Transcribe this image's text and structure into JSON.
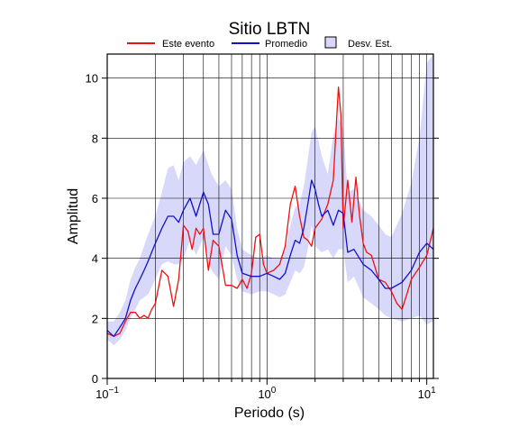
{
  "chart_data": {
    "type": "line",
    "title": "Sitio LBTN",
    "xlabel": "Periodo (s)",
    "ylabel": "Amplitud",
    "x_scale": "log",
    "xlim": [
      0.1,
      11
    ],
    "ylim": [
      0,
      10.8
    ],
    "x_tick_labels": [
      {
        "value": 0.1,
        "base": "10",
        "exp": "−1"
      },
      {
        "value": 1,
        "base": "10",
        "exp": "0"
      },
      {
        "value": 10,
        "base": "10",
        "exp": "1"
      }
    ],
    "y_ticks": [
      0,
      2,
      4,
      6,
      8,
      10
    ],
    "grid": true,
    "legend_position": "top",
    "legend": [
      {
        "label": "Este evento",
        "color": "#ee1111",
        "kind": "line"
      },
      {
        "label": "Promedio",
        "color": "#1111cc",
        "kind": "line"
      },
      {
        "label": "Desv. Est.",
        "color": "#d8d8fa",
        "kind": "band"
      }
    ],
    "series": [
      {
        "name": "Este evento",
        "color": "#ee1111",
        "x": [
          0.1,
          0.11,
          0.12,
          0.13,
          0.14,
          0.15,
          0.16,
          0.17,
          0.18,
          0.19,
          0.2,
          0.22,
          0.24,
          0.26,
          0.28,
          0.3,
          0.32,
          0.34,
          0.36,
          0.38,
          0.4,
          0.43,
          0.46,
          0.5,
          0.55,
          0.6,
          0.65,
          0.7,
          0.75,
          0.8,
          0.85,
          0.9,
          0.95,
          1.0,
          1.1,
          1.2,
          1.3,
          1.4,
          1.5,
          1.6,
          1.7,
          1.8,
          1.9,
          2.0,
          2.2,
          2.4,
          2.6,
          2.7,
          2.8,
          2.9,
          3.0,
          3.2,
          3.4,
          3.6,
          3.8,
          4.0,
          4.2,
          4.5,
          5.0,
          5.5,
          6.0,
          6.5,
          7.0,
          7.5,
          8.0,
          9.0,
          10.0,
          11.0
        ],
        "values": [
          1.5,
          1.4,
          1.5,
          1.9,
          2.2,
          2.2,
          2.0,
          2.1,
          2.0,
          2.3,
          2.5,
          3.6,
          3.4,
          2.4,
          3.3,
          5.1,
          4.9,
          4.3,
          5.0,
          4.8,
          5.0,
          3.6,
          4.6,
          4.4,
          3.1,
          3.1,
          3.0,
          3.3,
          3.0,
          3.5,
          4.7,
          4.8,
          3.8,
          3.5,
          3.6,
          3.8,
          4.4,
          5.8,
          6.4,
          5.4,
          4.7,
          4.6,
          4.4,
          5.0,
          5.3,
          5.8,
          6.6,
          8.2,
          9.7,
          8.8,
          5.0,
          6.6,
          5.2,
          6.7,
          5.4,
          4.5,
          4.2,
          4.1,
          3.3,
          3.2,
          2.9,
          2.5,
          2.3,
          2.8,
          3.3,
          3.7,
          4.1,
          5.0
        ]
      },
      {
        "name": "Promedio",
        "color": "#1111cc",
        "x": [
          0.1,
          0.11,
          0.12,
          0.13,
          0.14,
          0.15,
          0.16,
          0.17,
          0.18,
          0.2,
          0.22,
          0.24,
          0.26,
          0.28,
          0.3,
          0.33,
          0.36,
          0.4,
          0.43,
          0.46,
          0.5,
          0.55,
          0.6,
          0.65,
          0.7,
          0.8,
          0.9,
          1.0,
          1.1,
          1.2,
          1.3,
          1.4,
          1.5,
          1.6,
          1.7,
          1.8,
          1.9,
          2.0,
          2.1,
          2.2,
          2.4,
          2.6,
          2.8,
          3.0,
          3.2,
          3.5,
          4.0,
          4.5,
          5.0,
          5.5,
          6.0,
          7.0,
          8.0,
          9.0,
          10.0,
          11.0
        ],
        "values": [
          1.6,
          1.4,
          1.7,
          2.0,
          2.6,
          3.0,
          3.3,
          3.6,
          3.9,
          4.5,
          5.0,
          5.4,
          5.4,
          5.2,
          5.6,
          6.0,
          5.4,
          6.2,
          5.8,
          4.8,
          4.8,
          5.6,
          5.3,
          4.1,
          3.5,
          3.4,
          3.4,
          3.5,
          3.4,
          3.3,
          3.5,
          4.1,
          4.6,
          4.5,
          5.0,
          5.8,
          6.6,
          6.3,
          5.8,
          5.4,
          5.6,
          5.1,
          5.6,
          5.5,
          4.2,
          4.3,
          3.8,
          3.6,
          3.3,
          3.0,
          3.0,
          3.2,
          3.6,
          4.2,
          4.5,
          4.3
        ]
      }
    ],
    "band": {
      "name": "Desv. Est.",
      "color": "#d8d8fa",
      "x": [
        0.1,
        0.11,
        0.12,
        0.13,
        0.14,
        0.15,
        0.16,
        0.18,
        0.2,
        0.22,
        0.24,
        0.26,
        0.28,
        0.3,
        0.33,
        0.36,
        0.4,
        0.45,
        0.5,
        0.55,
        0.6,
        0.65,
        0.7,
        0.8,
        0.9,
        1.0,
        1.1,
        1.2,
        1.3,
        1.4,
        1.5,
        1.6,
        1.7,
        1.8,
        1.9,
        2.0,
        2.2,
        2.4,
        2.6,
        2.8,
        3.0,
        3.2,
        3.5,
        4.0,
        4.5,
        5.0,
        5.5,
        6.0,
        7.0,
        8.0,
        9.0,
        10.0,
        11.0
      ],
      "upper": [
        1.9,
        1.9,
        2.2,
        2.6,
        3.3,
        3.7,
        4.0,
        4.8,
        5.4,
        6.2,
        7.0,
        7.1,
        6.6,
        7.2,
        7.4,
        7.1,
        7.6,
        6.8,
        6.4,
        6.6,
        6.3,
        5.0,
        4.3,
        4.1,
        4.0,
        4.1,
        4.0,
        4.0,
        4.3,
        5.1,
        5.7,
        5.8,
        6.4,
        7.3,
        8.2,
        8.4,
        7.4,
        6.8,
        8.1,
        8.7,
        8.3,
        6.2,
        6.3,
        5.6,
        5.4,
        5.1,
        4.8,
        4.7,
        5.5,
        6.5,
        8.0,
        10.5,
        11.0
      ],
      "lower": [
        1.3,
        1.1,
        1.3,
        1.6,
        2.0,
        2.3,
        2.6,
        2.8,
        3.3,
        3.8,
        3.9,
        3.8,
        3.8,
        4.0,
        4.6,
        4.1,
        4.7,
        3.6,
        3.3,
        4.4,
        4.1,
        3.3,
        2.9,
        2.8,
        2.9,
        2.9,
        2.8,
        2.7,
        2.8,
        3.2,
        3.6,
        3.5,
        3.7,
        4.3,
        5.1,
        4.4,
        4.2,
        4.3,
        4.0,
        4.3,
        4.3,
        3.2,
        3.4,
        2.7,
        2.5,
        2.3,
        2.1,
        2.0,
        1.9,
        2.0,
        2.1,
        1.8,
        1.9
      ]
    }
  }
}
